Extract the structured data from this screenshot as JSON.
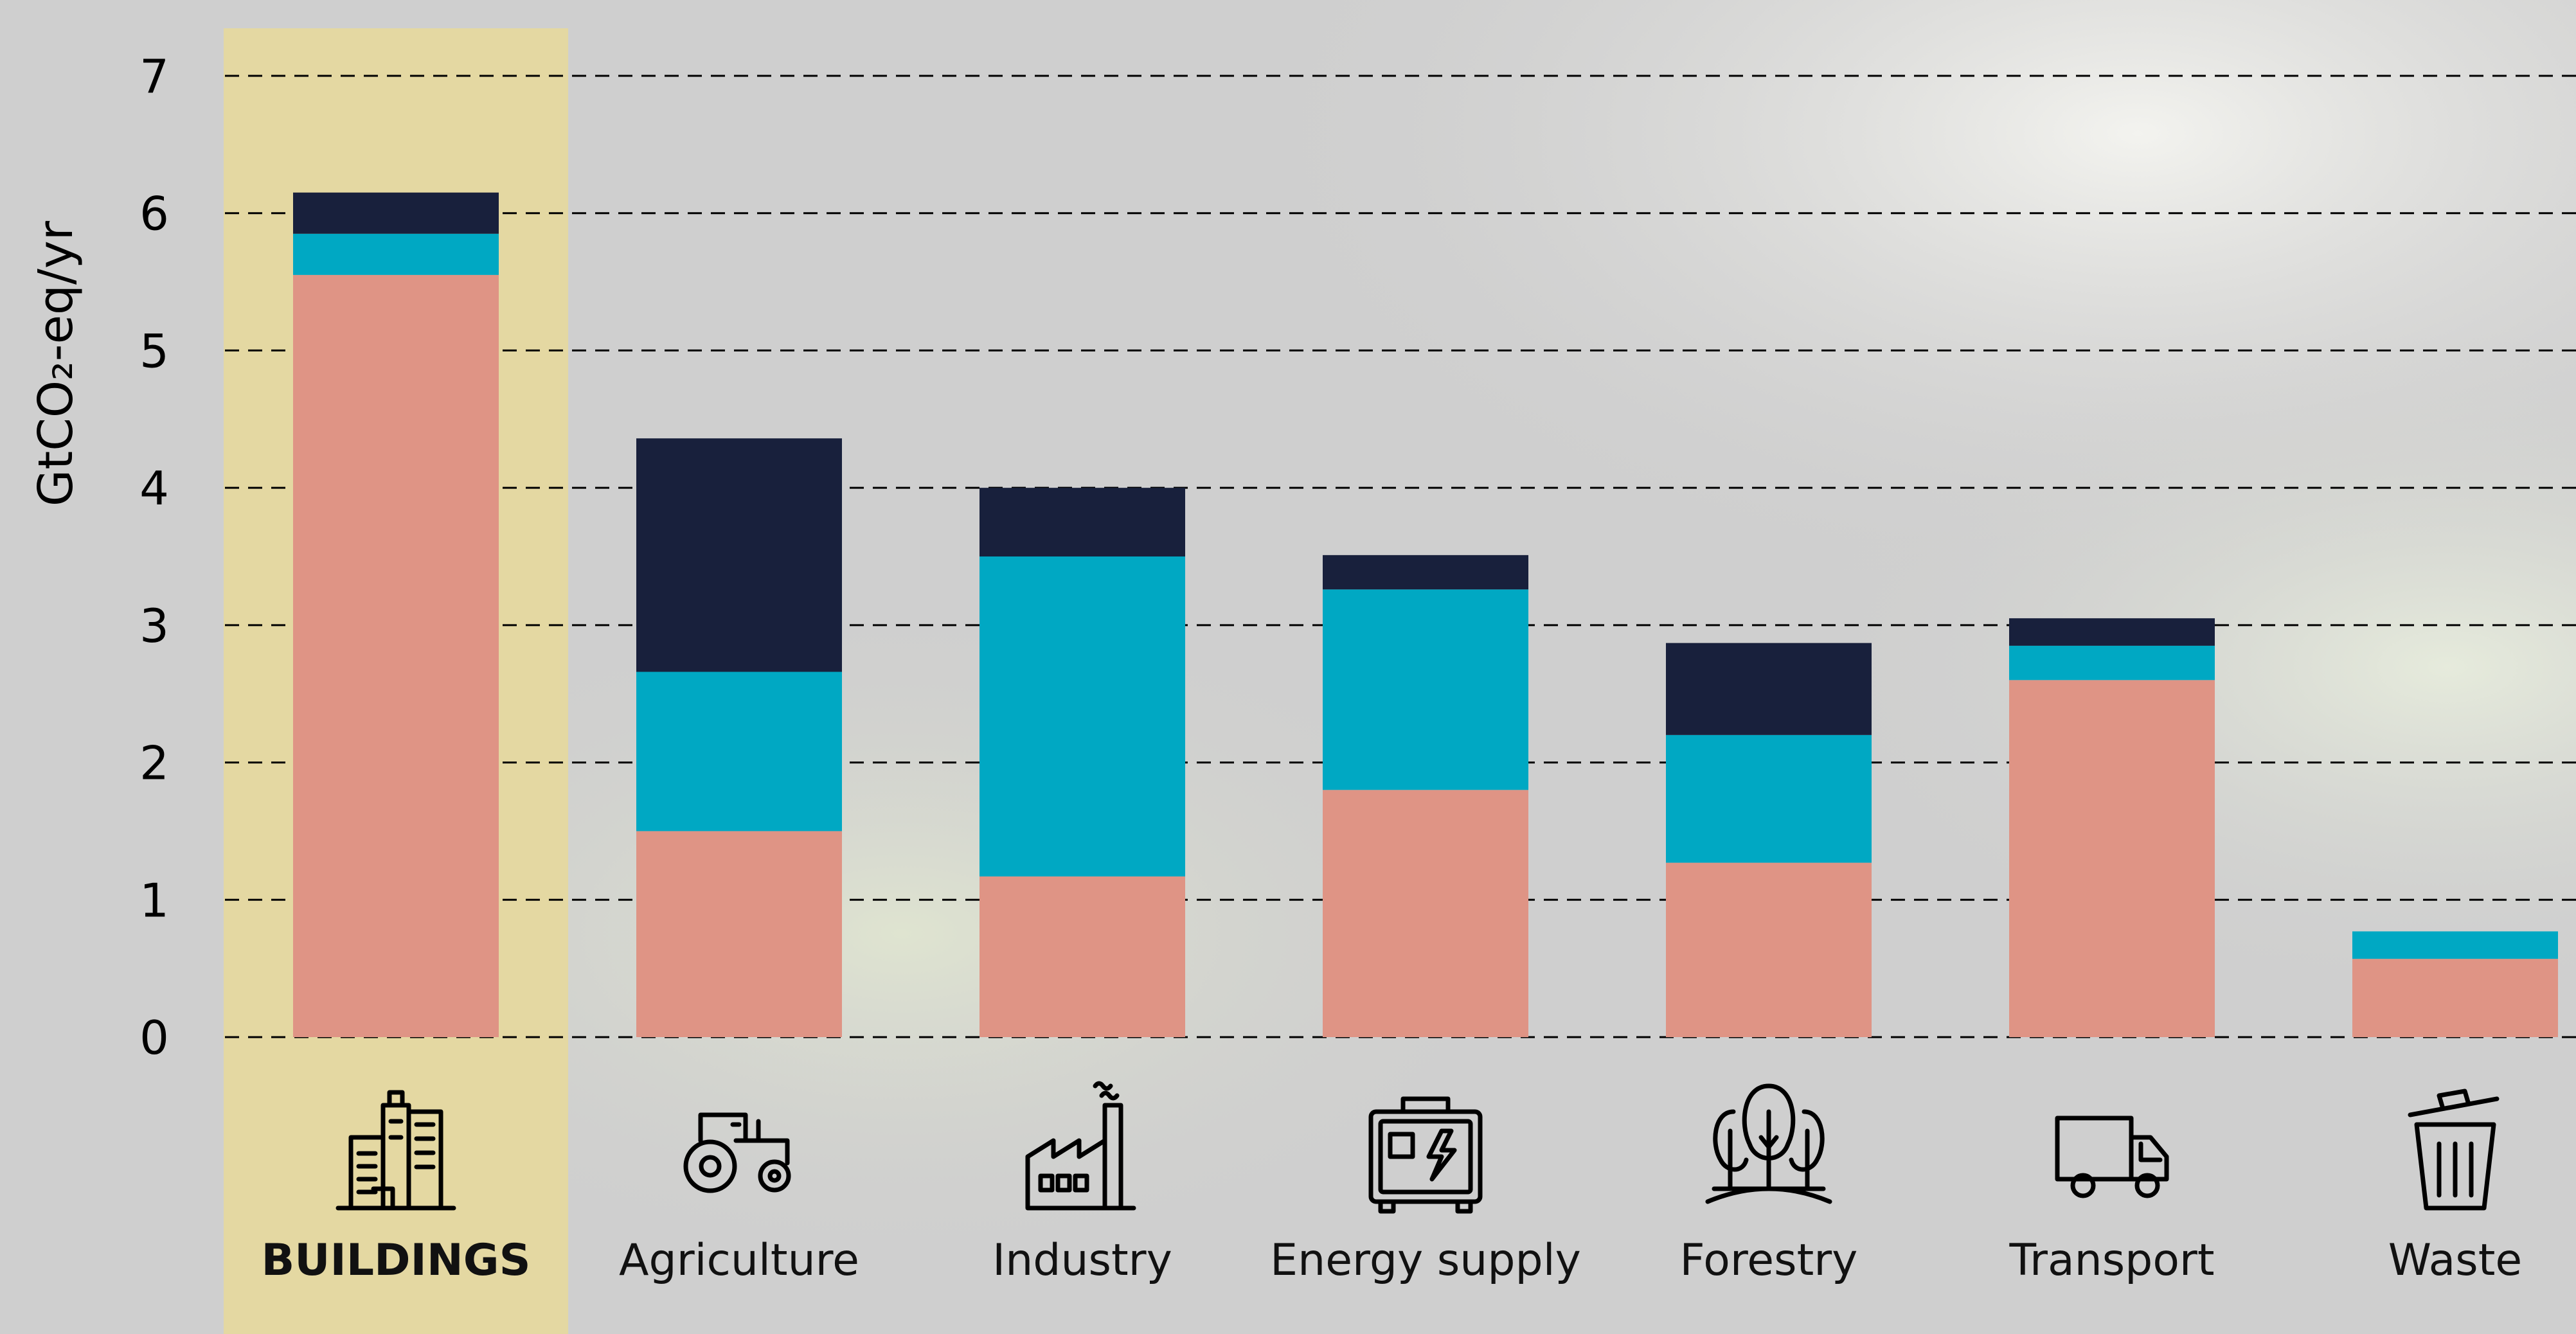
{
  "chart_data": {
    "type": "bar",
    "stacked": true,
    "categories": [
      "BUILDINGS",
      "Agriculture",
      "Industry",
      "Energy supply",
      "Forestry",
      "Transport",
      "Waste"
    ],
    "highlighted_category": "BUILDINGS",
    "series": [
      {
        "values": [
          5.55,
          1.5,
          1.17,
          1.8,
          1.27,
          2.6,
          0.57
        ],
        "color": "#df9485"
      },
      {
        "values": [
          0.3,
          1.16,
          2.33,
          1.46,
          0.93,
          0.25,
          0.2
        ],
        "color": "#00a8c3"
      },
      {
        "values": [
          0.3,
          1.7,
          0.5,
          0.25,
          0.67,
          0.2,
          0.0
        ],
        "color": "#18203c"
      }
    ],
    "ylabel": "GtCO₂-eq/yr",
    "ylim": [
      0,
      7
    ],
    "yticks": [
      "0",
      "1",
      "2",
      "3",
      "4",
      "5",
      "6",
      "7"
    ],
    "grid": "horizontal-dashed",
    "category_icons": [
      "buildings-icon",
      "tractor-icon",
      "factory-icon",
      "generator-icon",
      "trees-icon",
      "truck-icon",
      "trash-bin-icon"
    ],
    "highlight_color": "#e4d8a2"
  }
}
